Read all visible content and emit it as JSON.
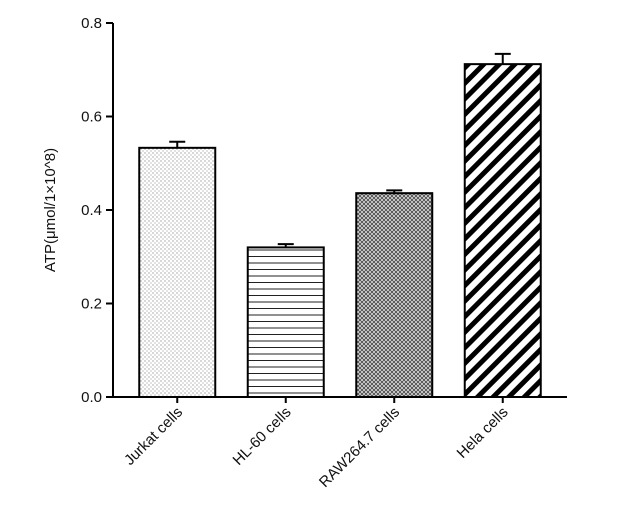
{
  "chart_data": {
    "type": "bar",
    "y_label": "ATP(μmol/1×10^8)",
    "categories": [
      "Jurkat cells",
      "HL-60 cells",
      "RAW264.7 cells",
      "Hela cells"
    ],
    "values": [
      0.533,
      0.32,
      0.436,
      0.712
    ],
    "errors": [
      0.013,
      0.007,
      0.006,
      0.022
    ],
    "patterns": [
      "dots",
      "horizontal",
      "crosshatch",
      "diagonal"
    ],
    "color": "#000000",
    "ylim": [
      0,
      0.8
    ],
    "yticks": [
      {
        "value": 0,
        "label": "0.0"
      },
      0.2,
      0.4,
      0.6,
      0.8
    ]
  }
}
